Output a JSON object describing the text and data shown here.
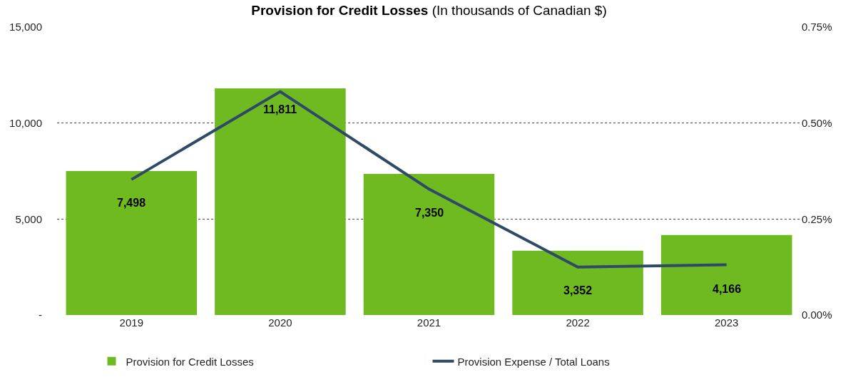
{
  "chart_data": {
    "type": "bar",
    "title": "Provision for Credit Losses",
    "subtitle": "(In thousands of Canadian $)",
    "categories": [
      "2019",
      "2020",
      "2021",
      "2022",
      "2023"
    ],
    "series": [
      {
        "name": "Provision for Credit Losses",
        "color": "#70ba21",
        "values": [
          7498,
          11811,
          7350,
          3352,
          4166
        ],
        "value_labels": [
          "7,498",
          "11,811",
          "7,350",
          "3,352",
          "4,166"
        ]
      },
      {
        "name": "Provision Expense / Total Loans",
        "type": "line",
        "axis": "y2",
        "color": "#2e4a66",
        "values": [
          0.353,
          0.582,
          0.328,
          0.125,
          0.131
        ]
      }
    ],
    "ylim": [
      0,
      15000
    ],
    "yticks": [
      {
        "value": 0,
        "label": "-"
      },
      {
        "value": 5000,
        "label": "5,000"
      },
      {
        "value": 10000,
        "label": "10,000"
      },
      {
        "value": 15000,
        "label": "15,000"
      }
    ],
    "y2lim": [
      0,
      0.75
    ],
    "y2ticks": [
      {
        "value": 0,
        "label": "0.00%"
      },
      {
        "value": 0.25,
        "label": "0.25%"
      },
      {
        "value": 0.5,
        "label": "0.50%"
      },
      {
        "value": 0.75,
        "label": "0.75%"
      }
    ],
    "grid": "y",
    "legend": "bottom",
    "marker": "none",
    "line_style": "solid"
  }
}
